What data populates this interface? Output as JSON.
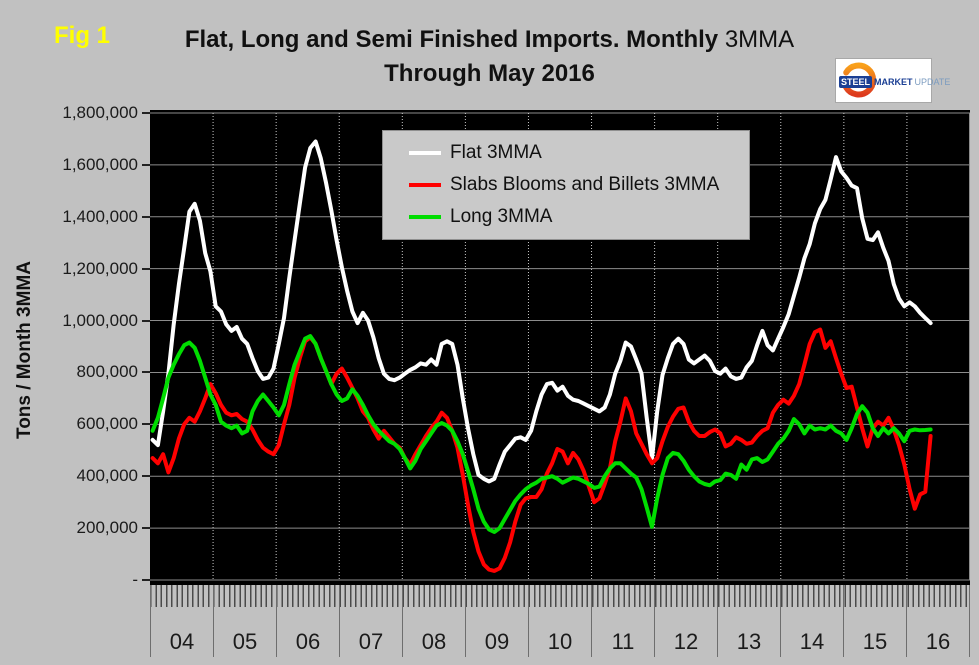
{
  "figure": {
    "label": "Fig 1",
    "label_color": "#ffff00"
  },
  "title": {
    "main": "Flat, Long and Semi Finished Imports. Monthly",
    "suffix": " 3MMA",
    "line2": "Through May 2016"
  },
  "logo": {
    "steel": "STEEL",
    "market": "MARKET",
    "update": "UPDATE"
  },
  "legend": [
    {
      "label": "Flat 3MMA",
      "color": "#ffffff"
    },
    {
      "label": "Slabs Blooms and Billets 3MMA",
      "color": "#ff0000"
    },
    {
      "label": "Long 3MMA",
      "color": "#00dd00"
    }
  ],
  "y_axis": {
    "title": "Tons / Month 3MMA",
    "tick_labels": [
      "1,800,000",
      "1,600,000",
      "1,400,000",
      "1,200,000",
      "1,000,000",
      "800,000",
      "600,000",
      "400,000",
      "200,000",
      "-"
    ]
  },
  "x_axis": {
    "year_labels": [
      "04",
      "05",
      "06",
      "07",
      "08",
      "09",
      "10",
      "11",
      "12",
      "13",
      "14",
      "15",
      "16"
    ]
  },
  "chart_data": {
    "type": "line",
    "title": "Flat, Long and Semi Finished Imports. Monthly 3MMA Through May 2016",
    "xlabel": "",
    "ylabel": "Tons / Month 3MMA",
    "ylim": [
      0,
      1800000
    ],
    "ytick_step": 200000,
    "x_start": "2004-01",
    "x_end": "2016-05",
    "x_unit": "month",
    "months_per_year": 12,
    "grid": "horizontal solid, vertical dotted at year boundaries",
    "legend_position": "top-center inside plot",
    "plot_background": "#000000",
    "series": [
      {
        "name": "Flat 3MMA",
        "color": "#ffffff",
        "values": [
          540000,
          520000,
          650000,
          795000,
          985000,
          1140000,
          1280000,
          1420000,
          1450000,
          1385000,
          1260000,
          1190000,
          1055000,
          1035000,
          985000,
          960000,
          975000,
          930000,
          910000,
          855000,
          805000,
          775000,
          780000,
          815000,
          910000,
          1010000,
          1165000,
          1310000,
          1450000,
          1590000,
          1665000,
          1690000,
          1625000,
          1530000,
          1425000,
          1310000,
          1205000,
          1115000,
          1035000,
          990000,
          1030000,
          1000000,
          935000,
          855000,
          795000,
          775000,
          770000,
          780000,
          795000,
          810000,
          820000,
          835000,
          830000,
          850000,
          830000,
          910000,
          920000,
          910000,
          830000,
          700000,
          585000,
          485000,
          405000,
          390000,
          380000,
          390000,
          445000,
          495000,
          520000,
          545000,
          550000,
          540000,
          575000,
          650000,
          715000,
          755000,
          760000,
          730000,
          745000,
          710000,
          695000,
          690000,
          680000,
          670000,
          660000,
          650000,
          665000,
          715000,
          795000,
          845000,
          915000,
          900000,
          850000,
          795000,
          625000,
          470000,
          650000,
          790000,
          855000,
          910000,
          930000,
          910000,
          850000,
          835000,
          850000,
          865000,
          845000,
          805000,
          795000,
          815000,
          785000,
          775000,
          780000,
          820000,
          845000,
          905000,
          960000,
          905000,
          885000,
          930000,
          975000,
          1025000,
          1095000,
          1165000,
          1240000,
          1295000,
          1375000,
          1430000,
          1465000,
          1545000,
          1630000,
          1575000,
          1550000,
          1520000,
          1510000,
          1395000,
          1315000,
          1310000,
          1340000,
          1280000,
          1230000,
          1140000,
          1085000,
          1055000,
          1070000,
          1055000,
          1030000,
          1010000,
          990000
        ]
      },
      {
        "name": "Slabs Blooms and Billets 3MMA",
        "color": "#ff0000",
        "values": [
          470000,
          450000,
          485000,
          415000,
          470000,
          545000,
          600000,
          625000,
          610000,
          650000,
          700000,
          755000,
          720000,
          675000,
          645000,
          635000,
          640000,
          620000,
          610000,
          580000,
          540000,
          510000,
          495000,
          485000,
          520000,
          600000,
          675000,
          780000,
          855000,
          920000,
          935000,
          910000,
          855000,
          805000,
          755000,
          795000,
          815000,
          780000,
          740000,
          700000,
          650000,
          625000,
          580000,
          545000,
          575000,
          550000,
          525000,
          510000,
          470000,
          445000,
          485000,
          520000,
          555000,
          585000,
          610000,
          645000,
          625000,
          575000,
          510000,
          405000,
          290000,
          185000,
          110000,
          60000,
          40000,
          35000,
          45000,
          85000,
          145000,
          225000,
          290000,
          315000,
          320000,
          320000,
          350000,
          410000,
          450000,
          505000,
          495000,
          450000,
          490000,
          465000,
          420000,
          360000,
          300000,
          315000,
          370000,
          430000,
          535000,
          610000,
          700000,
          650000,
          565000,
          525000,
          485000,
          450000,
          470000,
          535000,
          590000,
          630000,
          660000,
          665000,
          610000,
          575000,
          555000,
          555000,
          570000,
          580000,
          565000,
          515000,
          525000,
          550000,
          540000,
          525000,
          530000,
          555000,
          575000,
          585000,
          645000,
          675000,
          695000,
          680000,
          710000,
          755000,
          830000,
          910000,
          955000,
          965000,
          895000,
          920000,
          855000,
          795000,
          740000,
          745000,
          665000,
          585000,
          515000,
          585000,
          610000,
          595000,
          625000,
          580000,
          520000,
          445000,
          350000,
          275000,
          330000,
          340000,
          555000
        ]
      },
      {
        "name": "Long 3MMA",
        "color": "#00dd00",
        "values": [
          575000,
          625000,
          700000,
          780000,
          830000,
          870000,
          905000,
          915000,
          895000,
          845000,
          780000,
          715000,
          675000,
          610000,
          595000,
          585000,
          595000,
          565000,
          575000,
          650000,
          690000,
          715000,
          690000,
          665000,
          635000,
          675000,
          755000,
          830000,
          880000,
          930000,
          940000,
          910000,
          855000,
          805000,
          755000,
          715000,
          690000,
          700000,
          735000,
          710000,
          675000,
          635000,
          600000,
          575000,
          555000,
          535000,
          525000,
          505000,
          470000,
          430000,
          460000,
          505000,
          535000,
          565000,
          595000,
          605000,
          595000,
          575000,
          535000,
          485000,
          420000,
          350000,
          275000,
          225000,
          195000,
          185000,
          200000,
          235000,
          270000,
          305000,
          330000,
          350000,
          365000,
          375000,
          390000,
          395000,
          400000,
          390000,
          375000,
          385000,
          395000,
          390000,
          380000,
          370000,
          355000,
          360000,
          400000,
          430000,
          450000,
          450000,
          430000,
          410000,
          395000,
          350000,
          280000,
          205000,
          315000,
          405000,
          470000,
          490000,
          485000,
          460000,
          425000,
          400000,
          380000,
          370000,
          365000,
          380000,
          385000,
          410000,
          405000,
          390000,
          445000,
          425000,
          465000,
          470000,
          455000,
          465000,
          495000,
          525000,
          545000,
          575000,
          620000,
          600000,
          565000,
          595000,
          580000,
          585000,
          580000,
          595000,
          575000,
          565000,
          540000,
          585000,
          640000,
          670000,
          645000,
          585000,
          555000,
          585000,
          565000,
          585000,
          565000,
          535000,
          575000,
          580000,
          577000,
          578000,
          580000
        ]
      }
    ]
  }
}
